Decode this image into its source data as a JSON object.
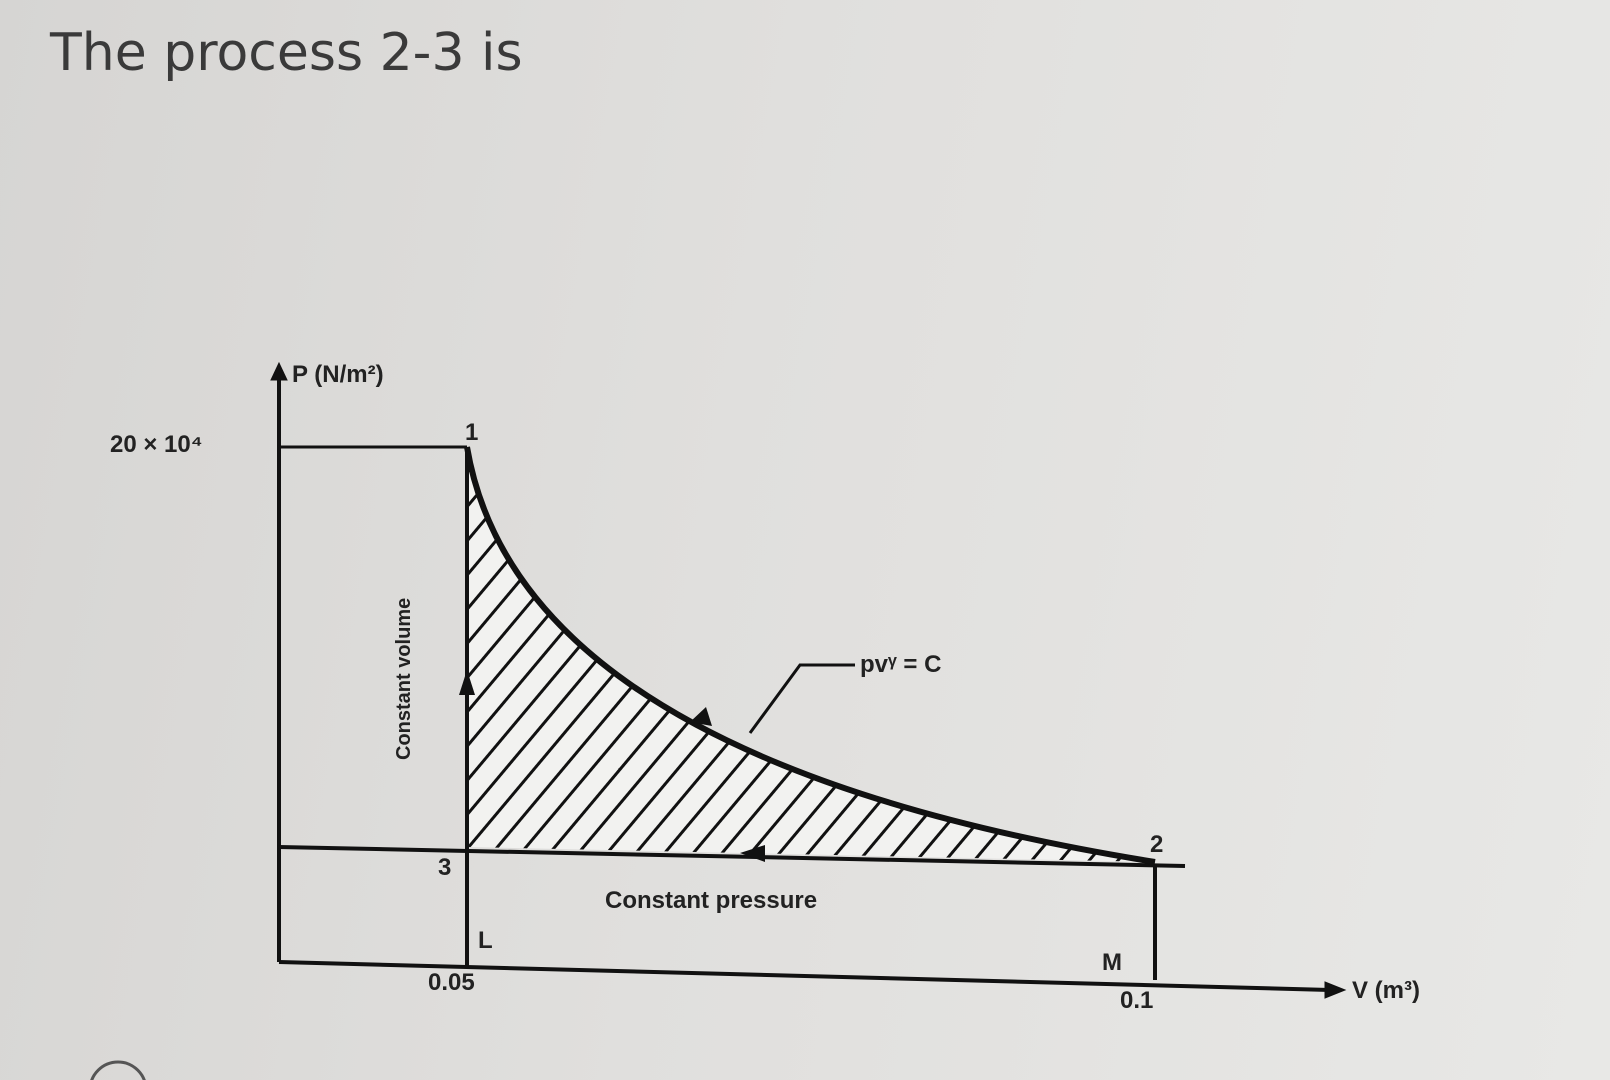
{
  "question": {
    "title": "The process 2-3 is"
  },
  "diagram": {
    "y_axis_label": "P (N/m²)",
    "x_axis_label": "V (m³)",
    "pressure_mark": "20 × 10⁴",
    "volume_marks": [
      "0.05",
      "0.1"
    ],
    "points": [
      "1",
      "2",
      "3",
      "L",
      "M"
    ],
    "curve_label": "pvᵞ = C",
    "process_labels": [
      "Constant volume",
      "Constant pressure"
    ]
  }
}
